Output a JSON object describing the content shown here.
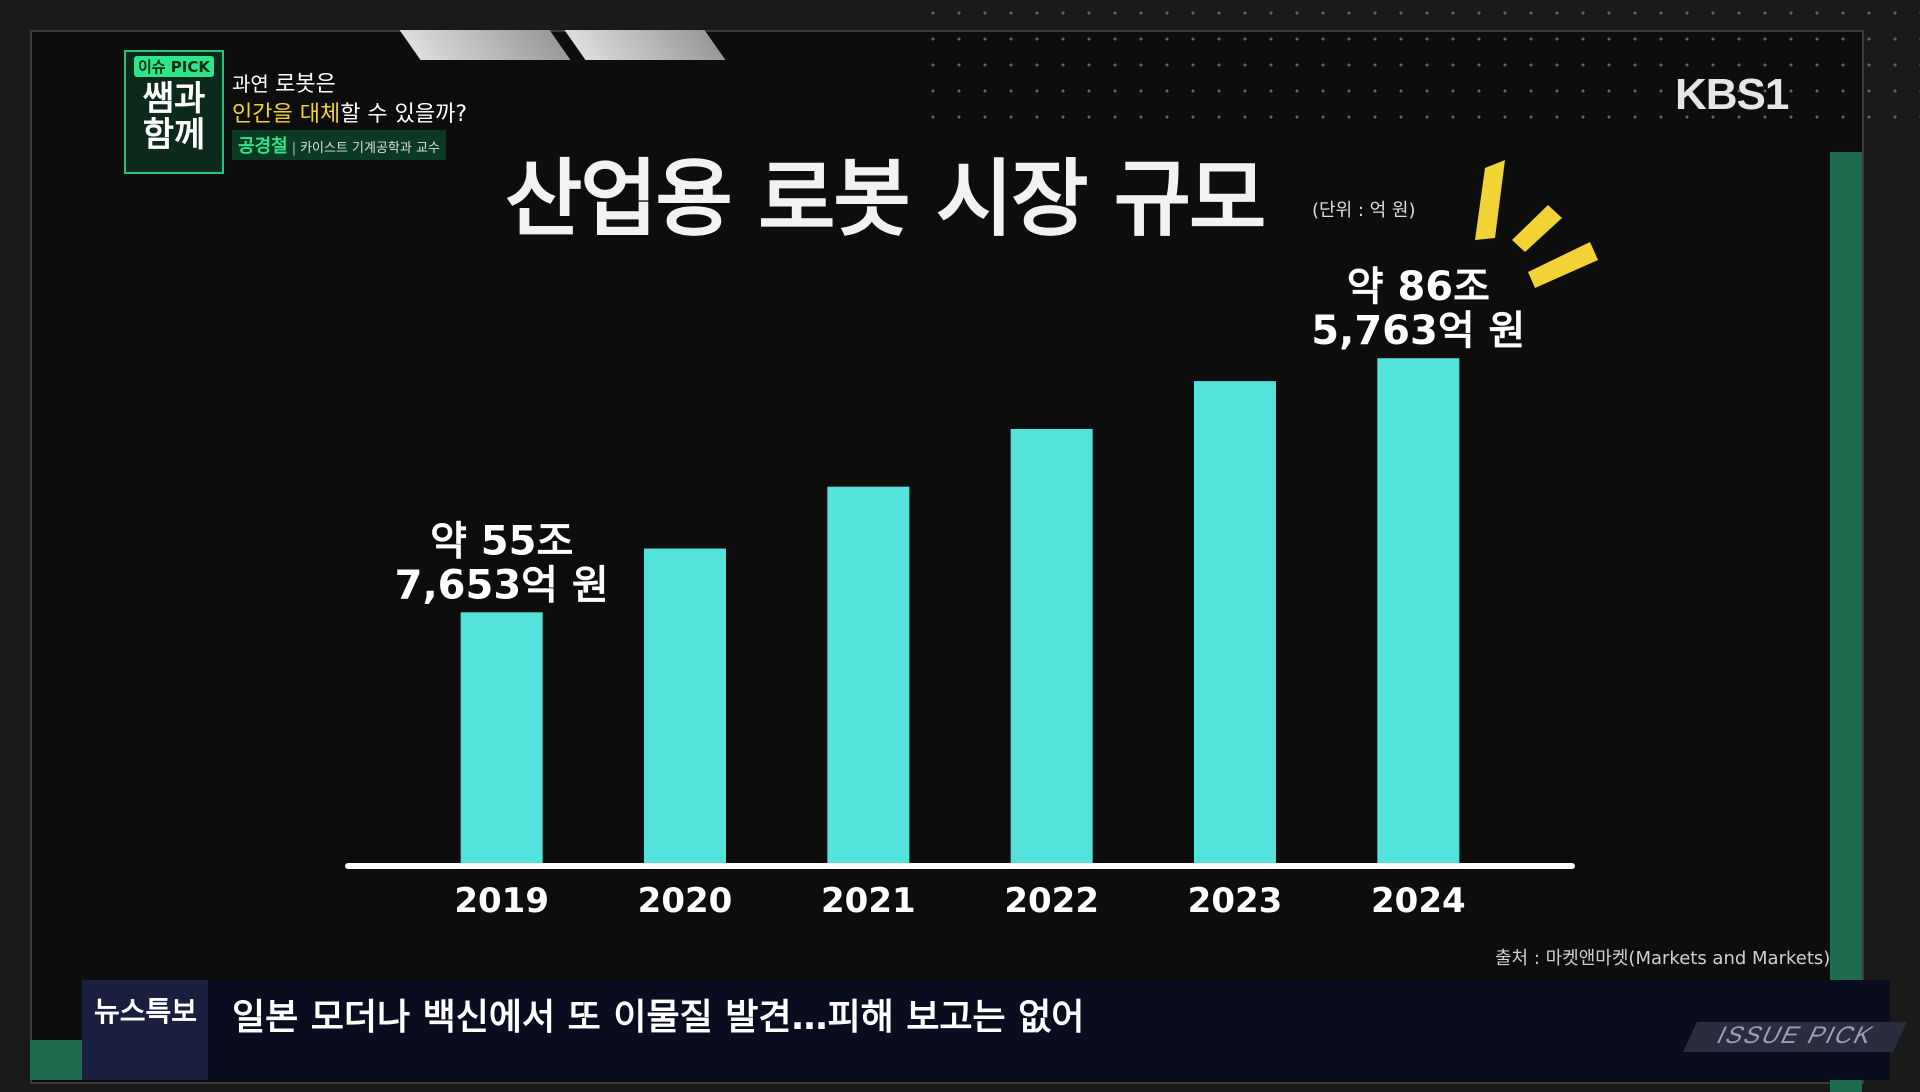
{
  "show": {
    "badge_pick": "이슈 PICK",
    "badge_main": "쌤과 함께",
    "subtitle_prefix": "과연 ",
    "subtitle_word": "로봇은",
    "question_part1": "인간을 대체",
    "question_part2": "할 수 있을까?",
    "guest_name": "공경철",
    "guest_sep": "|",
    "guest_role": "카이스트 기계공학과 교수"
  },
  "channel": {
    "logo": "KBS1"
  },
  "colors": {
    "bar": "#54e2dd",
    "accent_yellow": "#f2d335",
    "accent_green": "#2ee58a",
    "axis": "#ffffff"
  },
  "chart_data": {
    "type": "bar",
    "title": "산업용 로봇 시장 규모",
    "unit_note": "(단위 : 억 원)",
    "categories": [
      "2019",
      "2020",
      "2021",
      "2022",
      "2023",
      "2024"
    ],
    "values": [
      557653,
      635000,
      710000,
      780000,
      838000,
      865763
    ],
    "ylim": [
      250000,
      900000
    ],
    "data_labels": [
      {
        "index": 0,
        "line1": "약 55조",
        "line2": "7,653억 원"
      },
      {
        "index": 5,
        "line1": "약 86조",
        "line2": "5,763억 원"
      }
    ],
    "xlabel": "",
    "ylabel": "",
    "legend": "none",
    "grid": false,
    "source": "출처 : 마켓앤마켓(Markets and Markets)"
  },
  "ticker": {
    "label": "뉴스특보",
    "text": "일본 모더나 백신에서 또 이물질 발견…피해 보고는 없어"
  },
  "corner_tag": "ISSUE PICK"
}
